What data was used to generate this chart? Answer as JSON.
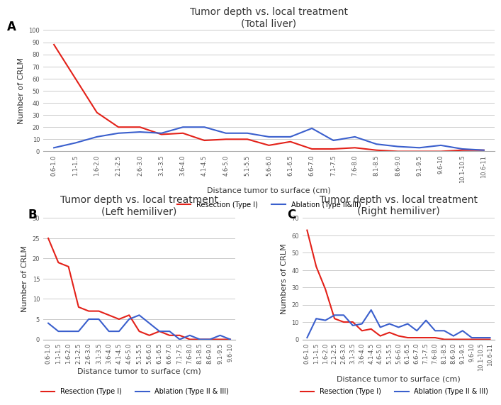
{
  "panel_A": {
    "title": "Tumor depth vs. local treatment",
    "subtitle": "(Total liver)",
    "xlabel": "Distance tumor to surface (cm)",
    "ylabel": "Number of CRLM",
    "ylim": [
      0,
      100
    ],
    "yticks": [
      0,
      10,
      20,
      30,
      40,
      50,
      60,
      70,
      80,
      90,
      100
    ],
    "x_labels": [
      "0.6-1.0",
      "1.1-1.5",
      "1.6-2.0",
      "2.1-2.5",
      "2.6-3.0",
      "3.1-3.5",
      "3.6-4.0",
      "4.1-4.5",
      "4.6-5.0",
      "5.1-5.5",
      "5.6-6.0",
      "6.1-6.5",
      "6.6-7.0",
      "7.1-7.5",
      "7.6-8.0",
      "8.1-8.5",
      "8.6-9.0",
      "9.1-9.5",
      "9.6-10",
      "10.1-10.5",
      "10.6-11"
    ],
    "resection": [
      88,
      60,
      32,
      20,
      20,
      14,
      15,
      9,
      10,
      10,
      5,
      8,
      2,
      2,
      3,
      1,
      0,
      0,
      0,
      1,
      1
    ],
    "ablation": [
      3,
      7,
      12,
      15,
      16,
      15,
      20,
      20,
      15,
      15,
      12,
      12,
      19,
      9,
      12,
      6,
      4,
      3,
      5,
      2,
      1
    ],
    "legend_resection": "Resection (Type I)",
    "legend_ablation": "Ablation (Type II&III)"
  },
  "panel_B": {
    "title": "Tumor depth vs. local treatment",
    "subtitle": "(Left hemiliver)",
    "xlabel": "Distance tumor to surface (cm)",
    "ylabel": "Number of CRLM",
    "ylim": [
      0,
      30
    ],
    "yticks": [
      0,
      5,
      10,
      15,
      20,
      25,
      30
    ],
    "x_labels": [
      "0.6-1.0",
      "1.1-1.5",
      "1.6-2.0",
      "2.1-2.5",
      "2.6-3.0",
      "3.1-3.5",
      "3.6-4.0",
      "4.1-4.5",
      "4.6-5.0",
      "5.1-5.5",
      "5.6-6.0",
      "6.1-6.5",
      "6.6-7.0",
      "7.1-7.5",
      "7.6-8.0",
      "8.1-8.5",
      "8.6-9.0",
      "9.1-9.5",
      "9.6-10"
    ],
    "resection": [
      25,
      19,
      18,
      8,
      7,
      7,
      6,
      5,
      6,
      2,
      1,
      2,
      1,
      1,
      0,
      0,
      0,
      0,
      0
    ],
    "ablation": [
      4,
      2,
      2,
      2,
      5,
      5,
      2,
      2,
      5,
      6,
      4,
      2,
      2,
      0,
      1,
      0,
      0,
      1,
      0
    ],
    "legend_resection": "Resection (Type I)",
    "legend_ablation": "Ablation (Type II & III)"
  },
  "panel_C": {
    "title": "Tumor depth vs. local treatment",
    "subtitle": "(Right hemiliver)",
    "xlabel": "Distance tumor to surface (cm)",
    "ylabel": "Numbers of CRLM",
    "ylim": [
      0,
      70
    ],
    "yticks": [
      0,
      10,
      20,
      30,
      40,
      50,
      60,
      70
    ],
    "x_labels": [
      "0.6-1.0",
      "1.1-1.5",
      "1.6-2.0",
      "2.1-2.5",
      "2.6-3.0",
      "3.1-3.5",
      "3.6-4.0",
      "4.1-4.5",
      "4.6-5.0",
      "5.1-5.5",
      "5.6-6.0",
      "6.1-6.5",
      "6.6-7.0",
      "7.1-7.5",
      "7.6-8.0",
      "8.1-8.5",
      "8.6-9.0",
      "9.1-9.5",
      "9.6-10",
      "10.1-10.5",
      "10.6-11"
    ],
    "resection": [
      63,
      42,
      29,
      12,
      10,
      10,
      5,
      6,
      2,
      4,
      2,
      1,
      1,
      1,
      1,
      0,
      0,
      0,
      0,
      0,
      0
    ],
    "ablation": [
      1,
      12,
      11,
      14,
      14,
      8,
      9,
      17,
      7,
      9,
      7,
      9,
      5,
      11,
      5,
      5,
      2,
      5,
      1,
      1,
      1
    ],
    "legend_resection": "Resection (Type I)",
    "legend_ablation": "Ablation (Type II & III)"
  },
  "color_resection": "#e32119",
  "color_ablation": "#3a5fcd",
  "background_color": "#ffffff",
  "line_width": 1.5,
  "title_fontsize": 10,
  "subtitle_fontsize": 9,
  "label_fontsize": 8,
  "tick_fontsize": 6,
  "legend_fontsize": 7
}
